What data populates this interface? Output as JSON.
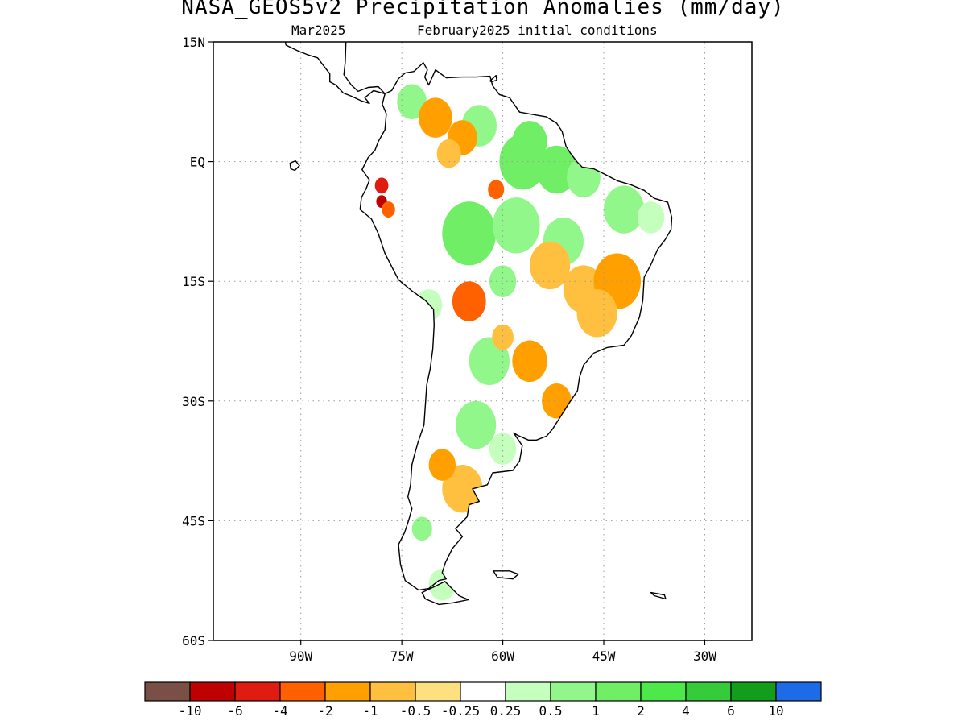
{
  "title": "NASA_GEOS5v2 Precipitation Anomalies (mm/day)",
  "subtitle_left": "Mar2025",
  "subtitle_right": "February2025 initial conditions",
  "map": {
    "lon_range": [
      -103,
      -23
    ],
    "lat_range": [
      -60,
      15
    ],
    "lat_ticks": [
      {
        "lat": 15,
        "label": "15N"
      },
      {
        "lat": 0,
        "label": "EQ"
      },
      {
        "lat": -15,
        "label": "15S"
      },
      {
        "lat": -30,
        "label": "30S"
      },
      {
        "lat": -45,
        "label": "45S"
      },
      {
        "lat": -60,
        "label": "60S"
      }
    ],
    "lon_ticks": [
      {
        "lon": -90,
        "label": "90W"
      },
      {
        "lon": -75,
        "label": "75W"
      },
      {
        "lon": -60,
        "label": "60W"
      },
      {
        "lon": -45,
        "label": "45W"
      },
      {
        "lon": -30,
        "label": "30W"
      }
    ],
    "grid": "dotted",
    "region": "South America"
  },
  "colorbar": {
    "colors": [
      "#7a4f45",
      "#be0000",
      "#e01b10",
      "#ff6000",
      "#ffa000",
      "#ffc040",
      "#ffe080",
      "#ffffff",
      "#c4ffbe",
      "#92f78a",
      "#70ef66",
      "#4de84a",
      "#35cb3a",
      "#129e1a",
      "#1e6be8"
    ],
    "labels": [
      "-10",
      "-6",
      "-4",
      "-2",
      "-1",
      "-0.5",
      "-0.25",
      "0.25",
      "0.5",
      "1",
      "2",
      "4",
      "6",
      "10"
    ]
  },
  "anomaly_regions": [
    {
      "lon": -73.5,
      "lat": 7.5,
      "r": 2.2,
      "level": 9
    },
    {
      "lon": -63.5,
      "lat": 4.5,
      "r": 2.6,
      "level": 9
    },
    {
      "lon": -56,
      "lat": 2.5,
      "r": 2.6,
      "level": 10
    },
    {
      "lon": -57,
      "lat": 0,
      "r": 3.5,
      "level": 10
    },
    {
      "lon": -52,
      "lat": -1,
      "r": 3,
      "level": 10
    },
    {
      "lon": -48,
      "lat": -2,
      "r": 2.5,
      "level": 9
    },
    {
      "lon": -70,
      "lat": 5.5,
      "r": 2.5,
      "level": 4
    },
    {
      "lon": -66,
      "lat": 3,
      "r": 2.2,
      "level": 4
    },
    {
      "lon": -68,
      "lat": 1,
      "r": 1.8,
      "level": 5
    },
    {
      "lon": -78,
      "lat": -3,
      "r": 1.0,
      "level": 2
    },
    {
      "lon": -78,
      "lat": -5,
      "r": 0.8,
      "level": 1
    },
    {
      "lon": -77,
      "lat": -6,
      "r": 1.0,
      "level": 3
    },
    {
      "lon": -61,
      "lat": -3.5,
      "r": 1.2,
      "level": 3
    },
    {
      "lon": -65,
      "lat": -9,
      "r": 4,
      "level": 10
    },
    {
      "lon": -58,
      "lat": -8,
      "r": 3.5,
      "level": 9
    },
    {
      "lon": -51,
      "lat": -10,
      "r": 3,
      "level": 9
    },
    {
      "lon": -42,
      "lat": -6,
      "r": 3,
      "level": 9
    },
    {
      "lon": -38,
      "lat": -7,
      "r": 2,
      "level": 8
    },
    {
      "lon": -53,
      "lat": -13,
      "r": 3,
      "level": 5
    },
    {
      "lon": -48,
      "lat": -16,
      "r": 3,
      "level": 5
    },
    {
      "lon": -43,
      "lat": -15,
      "r": 3.5,
      "level": 4
    },
    {
      "lon": -46,
      "lat": -19,
      "r": 3,
      "level": 5
    },
    {
      "lon": -65,
      "lat": -17.5,
      "r": 2.5,
      "level": 3
    },
    {
      "lon": -60,
      "lat": -15,
      "r": 2,
      "level": 9
    },
    {
      "lon": -71,
      "lat": -18,
      "r": 2,
      "level": 8
    },
    {
      "lon": -62,
      "lat": -25,
      "r": 3,
      "level": 9
    },
    {
      "lon": -56,
      "lat": -25,
      "r": 2.6,
      "level": 4
    },
    {
      "lon": -52,
      "lat": -30,
      "r": 2.2,
      "level": 4
    },
    {
      "lon": -60,
      "lat": -22,
      "r": 1.6,
      "level": 5
    },
    {
      "lon": -64,
      "lat": -33,
      "r": 3,
      "level": 9
    },
    {
      "lon": -60,
      "lat": -36,
      "r": 2,
      "level": 8
    },
    {
      "lon": -66,
      "lat": -41,
      "r": 3,
      "level": 5
    },
    {
      "lon": -69,
      "lat": -38,
      "r": 2,
      "level": 4
    },
    {
      "lon": -72,
      "lat": -46,
      "r": 1.5,
      "level": 9
    },
    {
      "lon": -69,
      "lat": -53,
      "r": 2,
      "level": 8
    }
  ]
}
